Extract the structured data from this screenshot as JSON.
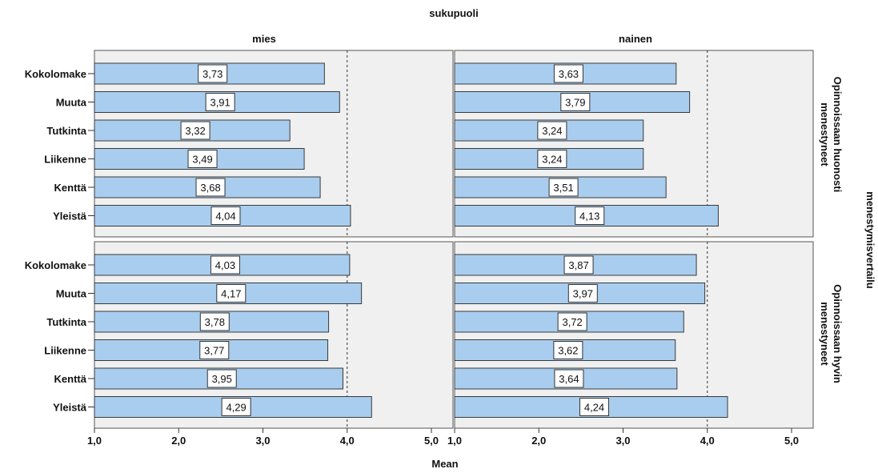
{
  "chart_data": {
    "type": "bar",
    "orientation": "horizontal",
    "top_title": "sukupuoli",
    "xlabel": "Mean",
    "right_title": "menestymisvertailu",
    "column_labels": [
      "mies",
      "nainen"
    ],
    "row_labels": [
      [
        "Opinnoissaan huonosti",
        "menestyneet"
      ],
      [
        "Opinnoissaan hyvin",
        "menestyneet"
      ]
    ],
    "categories": [
      "Kokolomake",
      "Muuta",
      "Tutkinta",
      "Liikenne",
      "Kenttä",
      "Yleistä"
    ],
    "xlim": [
      1.0,
      5.0
    ],
    "xticks": [
      1.0,
      2.0,
      3.0,
      4.0,
      5.0
    ],
    "xtick_labels": [
      "1,0",
      "2,0",
      "3,0",
      "4,0",
      "5,0"
    ],
    "reference_line": 4.0,
    "panels": [
      {
        "column": "mies",
        "row": "Opinnoissaan huonosti menestyneet",
        "values": [
          3.73,
          3.91,
          3.32,
          3.49,
          3.68,
          4.04
        ],
        "labels": [
          "3,73",
          "3,91",
          "3,32",
          "3,49",
          "3,68",
          "4,04"
        ]
      },
      {
        "column": "nainen",
        "row": "Opinnoissaan huonosti menestyneet",
        "values": [
          3.63,
          3.79,
          3.24,
          3.24,
          3.51,
          4.13
        ],
        "labels": [
          "3,63",
          "3,79",
          "3,24",
          "3,24",
          "3,51",
          "4,13"
        ]
      },
      {
        "column": "mies",
        "row": "Opinnoissaan hyvin menestyneet",
        "values": [
          4.03,
          4.17,
          3.78,
          3.77,
          3.95,
          4.29
        ],
        "labels": [
          "4,03",
          "4,17",
          "3,78",
          "3,77",
          "3,95",
          "4,29"
        ]
      },
      {
        "column": "nainen",
        "row": "Opinnoissaan hyvin menestyneet",
        "values": [
          3.87,
          3.97,
          3.72,
          3.62,
          3.64,
          4.24
        ],
        "labels": [
          "3,87",
          "3,97",
          "3,72",
          "3,62",
          "3,64",
          "4,24"
        ]
      }
    ],
    "grid": false,
    "colors": {
      "bar_fill": "#a9cdee",
      "bar_stroke": "#3a3a3a",
      "panel_bg": "#f0f0f0",
      "panel_border": "#555555",
      "reference_line": "#333333"
    }
  }
}
